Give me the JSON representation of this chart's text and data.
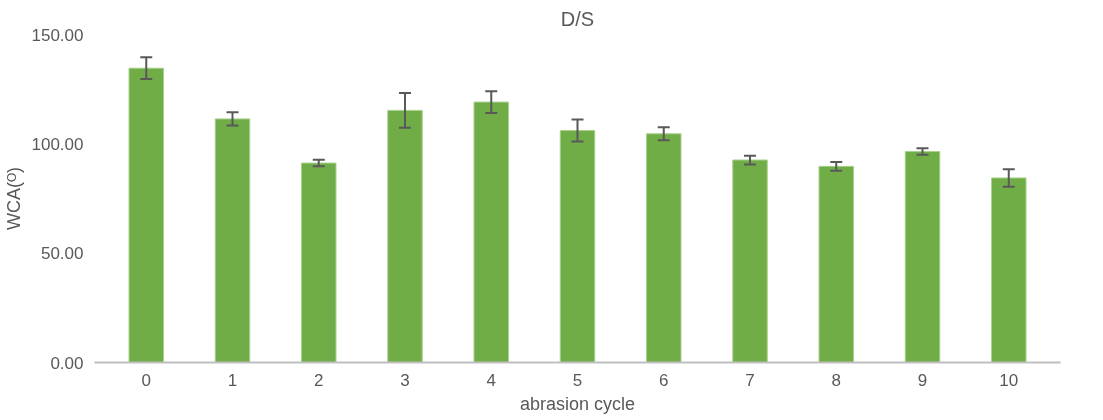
{
  "chart_data": {
    "type": "bar",
    "title": "D/S",
    "xlabel": "abrasion cycle",
    "ylabel": "WCA(ᴼ)",
    "categories": [
      "0",
      "1",
      "2",
      "3",
      "4",
      "5",
      "6",
      "7",
      "8",
      "9",
      "10"
    ],
    "values": [
      134.6,
      111.4,
      91.2,
      115.3,
      119.1,
      106.1,
      104.6,
      92.6,
      89.7,
      96.5,
      84.4
    ],
    "errors": [
      5,
      3,
      1.5,
      8,
      5,
      5,
      3,
      2,
      2,
      1.5,
      4
    ],
    "color": "#70ad47",
    "ylim": [
      0,
      150
    ],
    "yticks": [
      {
        "value": 0,
        "label": "0.00"
      },
      {
        "value": 50,
        "label": "50.00"
      },
      {
        "value": 100,
        "label": "100.00"
      },
      {
        "value": 150,
        "label": "150.00"
      }
    ],
    "grid": false
  }
}
